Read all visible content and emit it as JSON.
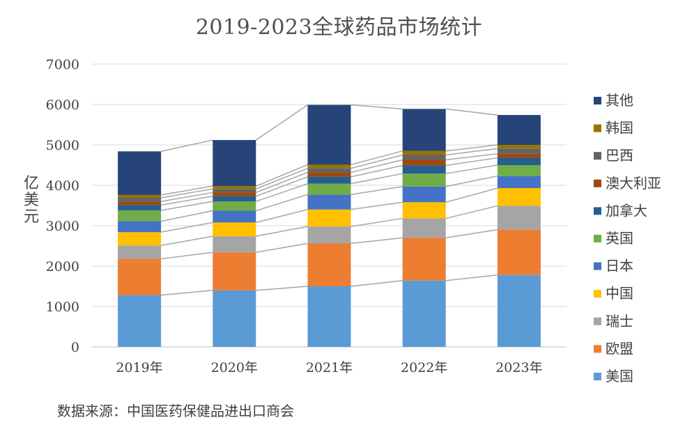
{
  "chart_data": {
    "type": "bar",
    "stacked": true,
    "title": "2019-2023全球药品市场统计",
    "ylabel": "亿美元",
    "xlabel": "",
    "ylim": [
      0,
      7000
    ],
    "yticks": [
      0,
      1000,
      2000,
      3000,
      4000,
      5000,
      6000,
      7000
    ],
    "grid": true,
    "legend_position": "right",
    "categories": [
      "2019年",
      "2020年",
      "2021年",
      "2022年",
      "2023年"
    ],
    "series": [
      {
        "name": "美国",
        "color": "#5B9BD5",
        "values": [
          1280,
          1400,
          1500,
          1640,
          1780
        ]
      },
      {
        "name": "欧盟",
        "color": "#ED7D31",
        "values": [
          900,
          940,
          1060,
          1060,
          1120
        ]
      },
      {
        "name": "瑞士",
        "color": "#A5A5A5",
        "values": [
          330,
          400,
          420,
          480,
          590
        ]
      },
      {
        "name": "中国",
        "color": "#FFC000",
        "values": [
          330,
          340,
          420,
          400,
          440
        ]
      },
      {
        "name": "日本",
        "color": "#4472C4",
        "values": [
          270,
          290,
          370,
          390,
          300
        ]
      },
      {
        "name": "英国",
        "color": "#70AD47",
        "values": [
          270,
          230,
          270,
          320,
          270
        ]
      },
      {
        "name": "加拿大",
        "color": "#255E91",
        "values": [
          130,
          130,
          170,
          200,
          180
        ]
      },
      {
        "name": "澳大利亚",
        "color": "#9E480E",
        "values": [
          90,
          90,
          110,
          140,
          100
        ]
      },
      {
        "name": "巴西",
        "color": "#636363",
        "values": [
          90,
          90,
          100,
          120,
          130
        ]
      },
      {
        "name": "韩国",
        "color": "#997300",
        "values": [
          70,
          70,
          90,
          100,
          90
        ]
      },
      {
        "name": "其他",
        "color": "#264478",
        "values": [
          1080,
          1140,
          1480,
          1040,
          740
        ]
      }
    ]
  },
  "source_note": "数据来源：中国医药保健品进出口商会"
}
